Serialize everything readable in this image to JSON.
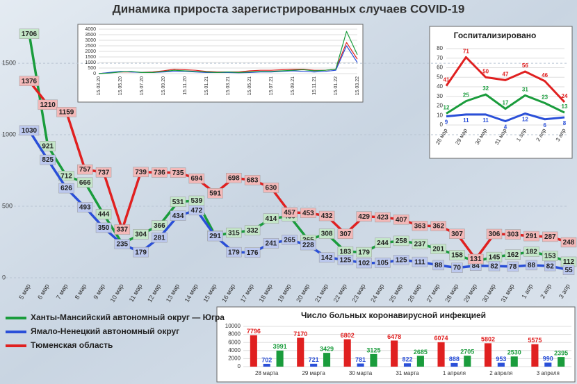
{
  "title": "Динамика прироста зарегистрированных случаев COVID-19",
  "chart_data": [
    {
      "type": "line",
      "categories": [
        "5 мар",
        "6 мар",
        "7 мар",
        "8 мар",
        "9 мар",
        "10 мар",
        "11 мар",
        "12 мар",
        "13 мар",
        "14 мар",
        "15 мар",
        "16 мар",
        "17 мар",
        "18 мар",
        "19 мар",
        "20 мар",
        "21 мар",
        "22 мар",
        "23 мар",
        "24 мар",
        "25 мар",
        "26 мар",
        "27 мар",
        "28 мар",
        "29 мар",
        "30 мар",
        "31 мар",
        "1 апр",
        "2 апр",
        "3 апр"
      ],
      "series": [
        {
          "name": "Ханты-Мансийский автономный округ — Югра",
          "color": "#1a9c3c",
          "label_bg": "#c4e6c8",
          "values": [
            1706,
            921,
            712,
            666,
            444,
            240,
            304,
            366,
            531,
            539,
            296,
            315,
            332,
            414,
            430,
            265,
            308,
            183,
            179,
            244,
            258,
            237,
            201,
            158,
            116,
            145,
            162,
            182,
            153,
            112
          ],
          "value_labels": [
            "1706",
            "921",
            "712",
            "666",
            "444",
            null,
            "304",
            "366",
            "531",
            "539",
            "296",
            "315",
            "332",
            "414",
            "430",
            "265",
            "308",
            "183",
            "179",
            "244",
            "258",
            "237",
            "201",
            "158",
            "116",
            "145",
            "162",
            "182",
            "153",
            "112"
          ]
        },
        {
          "name": "Ямало-Ненецкий автономный округ",
          "color": "#2a4fd8",
          "label_bg": "#bcc8ee",
          "values": [
            1030,
            825,
            626,
            493,
            350,
            235,
            179,
            281,
            434,
            472,
            291,
            179,
            176,
            241,
            265,
            228,
            142,
            125,
            102,
            105,
            125,
            111,
            88,
            70,
            84,
            82,
            78,
            88,
            82,
            55
          ]
        },
        {
          "name": "Тюменская область",
          "color": "#e02020",
          "label_bg": "#f3b8b8",
          "values": [
            1376,
            1210,
            1159,
            757,
            737,
            337,
            739,
            736,
            735,
            694,
            591,
            698,
            683,
            630,
            457,
            453,
            432,
            307,
            429,
            423,
            407,
            363,
            362,
            307,
            131,
            306,
            303,
            291,
            287,
            248
          ]
        }
      ],
      "ylim": [
        0,
        1850
      ],
      "yticks": [
        0,
        500,
        1000,
        1500
      ],
      "grid": true,
      "data_labels": true,
      "legend": "bottom-left"
    },
    {
      "type": "line",
      "categories": [
        "15.03.20",
        null,
        "15.05.20",
        null,
        "15.07.20",
        null,
        "15.09.20",
        null,
        "15.11.20",
        null,
        "15.01.21",
        null,
        "15.03.21",
        null,
        "15.05.21",
        null,
        "15.07.21",
        null,
        "15.09.21",
        null,
        "15.11.21",
        null,
        "15.01.22",
        null,
        "15.03.22"
      ],
      "series": [
        {
          "color": "#e02020",
          "values": [
            0,
            80,
            150,
            150,
            120,
            150,
            250,
            400,
            350,
            300,
            200,
            150,
            150,
            150,
            250,
            300,
            300,
            350,
            400,
            400,
            300,
            300,
            400,
            2800,
            1300
          ]
        },
        {
          "color": "#2a4fd8",
          "values": [
            0,
            100,
            200,
            150,
            100,
            100,
            150,
            200,
            200,
            150,
            100,
            100,
            100,
            80,
            100,
            150,
            150,
            200,
            250,
            200,
            150,
            200,
            300,
            2500,
            1000
          ]
        },
        {
          "color": "#1a9c3c",
          "values": [
            0,
            50,
            150,
            200,
            100,
            100,
            200,
            300,
            250,
            200,
            150,
            100,
            150,
            100,
            150,
            200,
            200,
            250,
            300,
            350,
            250,
            300,
            400,
            3800,
            1700
          ]
        }
      ],
      "ylim": [
        0,
        4250
      ],
      "yticks": [
        0,
        500,
        1000,
        1500,
        2000,
        2500,
        3000,
        3500,
        4000
      ],
      "grid": true,
      "data_labels": false
    },
    {
      "type": "line",
      "title": "Госпитализировано",
      "categories": [
        "28 мар",
        "29 мар",
        "30 мар",
        "31 мар",
        "1 апр",
        "2 апр",
        "3 апр"
      ],
      "series": [
        {
          "color": "#e02020",
          "values": [
            41,
            71,
            50,
            47,
            56,
            46,
            24
          ]
        },
        {
          "color": "#1a9c3c",
          "values": [
            12,
            25,
            32,
            17,
            31,
            23,
            13
          ]
        },
        {
          "color": "#2a4fd8",
          "values": [
            9,
            11,
            11,
            4,
            12,
            6,
            8
          ]
        }
      ],
      "ylim": [
        0,
        80
      ],
      "yticks": [
        0,
        10,
        20,
        30,
        40,
        50,
        60,
        70,
        80
      ],
      "grid": true,
      "data_labels": true
    },
    {
      "type": "bar",
      "title": "Число больных коронавирусной инфекцией",
      "categories": [
        "28 марта",
        "29 марта",
        "30 марта",
        "31 марта",
        "1 апреля",
        "2 апреля",
        "3 апреля"
      ],
      "series": [
        {
          "color": "#e02020",
          "values": [
            7796,
            7170,
            6802,
            6478,
            6074,
            5802,
            5575
          ]
        },
        {
          "color": "#2a4fd8",
          "values": [
            702,
            721,
            781,
            822,
            888,
            953,
            990
          ]
        },
        {
          "color": "#1a9c3c",
          "values": [
            3991,
            3429,
            3125,
            2685,
            2705,
            2530,
            2395
          ]
        }
      ],
      "ylim": [
        0,
        10000
      ],
      "yticks": [
        0,
        2000,
        4000,
        6000,
        8000,
        10000
      ],
      "grid": true,
      "data_labels": true
    }
  ]
}
